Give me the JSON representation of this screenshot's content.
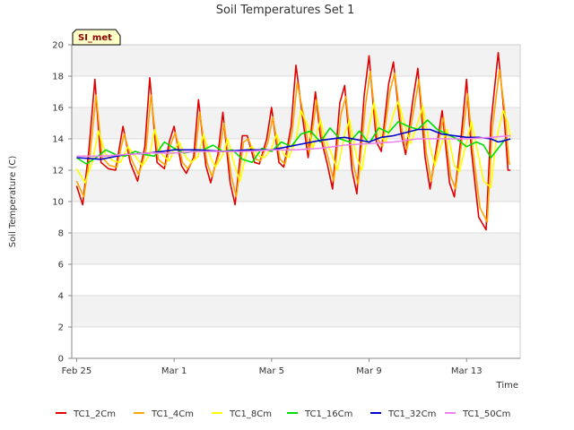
{
  "chart_data": {
    "type": "line",
    "title": "Soil Temperatures Set 1",
    "xlabel": "Time",
    "ylabel": "Soil Temperature (C)",
    "site_label": "SI_met",
    "xlim": [
      -0.2,
      18.2
    ],
    "ylim": [
      0,
      20
    ],
    "x_unit": "days since Feb 25",
    "x_ticks": [
      {
        "x": 0,
        "label": "Feb 25"
      },
      {
        "x": 4,
        "label": "Mar 1"
      },
      {
        "x": 8,
        "label": "Mar 5"
      },
      {
        "x": 12,
        "label": "Mar 9"
      },
      {
        "x": 16,
        "label": "Mar 13"
      }
    ],
    "y_ticks": [
      0,
      2,
      4,
      6,
      8,
      10,
      12,
      14,
      16,
      18,
      20
    ],
    "grid": true,
    "legend_position": "bottom",
    "series": [
      {
        "name": "TC1_2Cm",
        "color": "#e00000",
        "x": [
          0.0,
          0.25,
          0.5,
          0.75,
          1.0,
          1.3,
          1.6,
          1.9,
          2.2,
          2.5,
          2.8,
          3.0,
          3.3,
          3.6,
          3.8,
          4.0,
          4.3,
          4.5,
          4.8,
          5.0,
          5.3,
          5.5,
          5.8,
          6.0,
          6.3,
          6.5,
          6.8,
          7.0,
          7.3,
          7.5,
          7.8,
          8.0,
          8.3,
          8.5,
          8.8,
          9.0,
          9.3,
          9.5,
          9.8,
          10.0,
          10.3,
          10.5,
          10.8,
          11.0,
          11.3,
          11.5,
          11.8,
          12.0,
          12.3,
          12.5,
          12.8,
          13.0,
          13.3,
          13.5,
          13.8,
          14.0,
          14.3,
          14.5,
          14.8,
          15.0,
          15.3,
          15.5,
          15.8,
          16.0,
          16.2,
          16.5,
          16.8,
          17.0,
          17.3,
          17.5,
          17.7,
          17.8
        ],
        "y": [
          11.0,
          9.8,
          13.2,
          17.8,
          12.5,
          12.1,
          12.0,
          14.8,
          12.5,
          11.3,
          13.5,
          17.9,
          12.5,
          12.1,
          13.8,
          14.8,
          12.3,
          11.8,
          12.8,
          16.5,
          12.3,
          11.2,
          13.0,
          15.7,
          11.2,
          9.8,
          14.2,
          14.2,
          12.5,
          12.4,
          14.0,
          16.0,
          12.5,
          12.2,
          14.8,
          18.7,
          15.0,
          12.8,
          17.0,
          14.2,
          12.3,
          10.8,
          16.3,
          17.4,
          12.0,
          10.5,
          16.8,
          19.3,
          13.8,
          13.2,
          17.5,
          18.9,
          14.5,
          13.0,
          16.5,
          18.5,
          12.8,
          10.8,
          13.8,
          15.8,
          11.2,
          10.3,
          14.5,
          17.8,
          13.2,
          9.0,
          8.2,
          15.0,
          19.5,
          16.3,
          12.0,
          12.0
        ]
      },
      {
        "name": "TC1_4Cm",
        "color": "#ffa500",
        "x": [
          0.0,
          0.3,
          0.55,
          0.8,
          1.05,
          1.35,
          1.65,
          1.95,
          2.25,
          2.55,
          2.85,
          3.05,
          3.35,
          3.65,
          3.85,
          4.05,
          4.35,
          4.55,
          4.85,
          5.05,
          5.35,
          5.55,
          5.85,
          6.05,
          6.35,
          6.55,
          6.85,
          7.05,
          7.35,
          7.55,
          7.85,
          8.05,
          8.35,
          8.55,
          8.85,
          9.05,
          9.35,
          9.55,
          9.85,
          10.05,
          10.35,
          10.55,
          10.85,
          11.05,
          11.35,
          11.55,
          11.85,
          12.05,
          12.35,
          12.55,
          12.85,
          13.05,
          13.35,
          13.55,
          13.85,
          14.05,
          14.35,
          14.55,
          14.85,
          15.05,
          15.35,
          15.55,
          15.85,
          16.05,
          16.25,
          16.55,
          16.85,
          17.05,
          17.35,
          17.55,
          17.75,
          17.8
        ],
        "y": [
          11.3,
          10.3,
          13.0,
          16.8,
          12.8,
          12.3,
          12.2,
          14.3,
          12.7,
          11.7,
          13.3,
          16.8,
          12.7,
          12.3,
          13.6,
          14.4,
          12.5,
          12.1,
          12.8,
          15.7,
          12.5,
          11.6,
          13.0,
          15.0,
          11.6,
          10.3,
          13.8,
          14.0,
          12.7,
          12.6,
          13.8,
          15.4,
          12.7,
          12.4,
          14.5,
          17.6,
          15.2,
          13.1,
          16.5,
          14.3,
          12.6,
          11.3,
          15.6,
          16.7,
          12.4,
          11.1,
          16.1,
          18.3,
          14.0,
          13.5,
          17.0,
          18.2,
          14.6,
          13.3,
          16.0,
          17.8,
          13.1,
          11.3,
          13.8,
          15.4,
          11.6,
          10.8,
          14.3,
          16.9,
          13.4,
          9.6,
          8.7,
          14.6,
          18.4,
          16.0,
          12.4,
          12.4
        ]
      },
      {
        "name": "TC1_8Cm",
        "color": "#ffff00",
        "x": [
          0.0,
          0.35,
          0.65,
          0.9,
          1.2,
          1.5,
          1.8,
          2.1,
          2.4,
          2.7,
          3.0,
          3.2,
          3.5,
          3.8,
          4.0,
          4.2,
          4.5,
          4.7,
          5.0,
          5.2,
          5.5,
          5.7,
          6.0,
          6.2,
          6.5,
          6.7,
          7.0,
          7.2,
          7.5,
          7.7,
          8.0,
          8.2,
          8.5,
          8.7,
          9.0,
          9.2,
          9.5,
          9.7,
          10.0,
          10.2,
          10.5,
          10.7,
          11.0,
          11.2,
          11.5,
          11.7,
          12.0,
          12.2,
          12.5,
          12.7,
          13.0,
          13.2,
          13.5,
          13.7,
          14.0,
          14.2,
          14.5,
          14.7,
          15.0,
          15.2,
          15.5,
          15.7,
          16.0,
          16.2,
          16.4,
          16.7,
          17.0,
          17.2,
          17.5,
          17.7,
          17.8
        ],
        "y": [
          12.1,
          11.2,
          12.6,
          14.5,
          13.0,
          12.6,
          12.5,
          13.5,
          12.9,
          12.3,
          13.0,
          14.6,
          13.0,
          12.6,
          13.3,
          13.8,
          12.8,
          12.5,
          12.9,
          14.3,
          12.8,
          12.2,
          13.0,
          14.0,
          12.2,
          11.3,
          13.3,
          13.5,
          12.9,
          12.8,
          13.4,
          14.3,
          13.0,
          12.8,
          13.9,
          15.8,
          14.8,
          13.4,
          15.2,
          14.0,
          12.9,
          12.0,
          14.3,
          15.2,
          12.8,
          12.0,
          14.8,
          16.3,
          14.1,
          13.8,
          15.6,
          16.4,
          14.7,
          13.7,
          15.0,
          16.1,
          13.5,
          12.3,
          13.8,
          14.6,
          12.3,
          11.9,
          13.8,
          15.1,
          13.6,
          11.3,
          10.9,
          13.8,
          15.8,
          15.0,
          14.1
        ]
      },
      {
        "name": "TC1_16Cm",
        "color": "#00dd00",
        "x": [
          0.0,
          0.4,
          0.8,
          1.2,
          1.6,
          2.0,
          2.4,
          2.8,
          3.2,
          3.6,
          4.0,
          4.4,
          4.8,
          5.2,
          5.6,
          6.0,
          6.4,
          6.8,
          7.2,
          7.6,
          8.0,
          8.4,
          8.8,
          9.2,
          9.6,
          10.0,
          10.4,
          10.8,
          11.2,
          11.6,
          12.0,
          12.4,
          12.8,
          13.2,
          13.6,
          14.0,
          14.4,
          14.8,
          15.2,
          15.6,
          16.0,
          16.4,
          16.7,
          17.0,
          17.3,
          17.6
        ],
        "y": [
          12.8,
          12.4,
          12.8,
          13.3,
          13.0,
          12.9,
          13.2,
          13.0,
          12.9,
          13.8,
          13.4,
          13.1,
          13.2,
          13.3,
          13.6,
          13.2,
          13.3,
          12.7,
          12.5,
          13.4,
          13.2,
          13.8,
          13.5,
          14.3,
          14.5,
          13.8,
          14.7,
          14.0,
          13.8,
          14.5,
          13.7,
          14.7,
          14.4,
          15.1,
          14.8,
          14.6,
          15.2,
          14.6,
          14.3,
          14.0,
          13.5,
          13.8,
          13.6,
          12.8,
          13.4,
          14.0
        ]
      },
      {
        "name": "TC1_32Cm",
        "color": "#0000cc",
        "x": [
          0.0,
          1.0,
          2.0,
          3.0,
          4.0,
          5.0,
          6.0,
          7.0,
          8.0,
          9.0,
          10.0,
          11.0,
          12.0,
          12.5,
          13.0,
          13.5,
          14.0,
          14.5,
          15.0,
          15.5,
          16.0,
          16.5,
          17.0,
          17.3,
          17.6,
          17.8
        ],
        "y": [
          12.8,
          12.7,
          13.0,
          13.1,
          13.3,
          13.3,
          13.2,
          13.3,
          13.3,
          13.6,
          13.9,
          14.1,
          13.8,
          14.1,
          14.2,
          14.4,
          14.6,
          14.6,
          14.3,
          14.2,
          14.1,
          14.1,
          14.0,
          13.8,
          13.9,
          14.0
        ]
      },
      {
        "name": "TC1_50Cm",
        "color": "#ee82ee",
        "x": [
          0.0,
          1.0,
          2.0,
          3.0,
          4.0,
          5.0,
          6.0,
          7.0,
          8.0,
          9.0,
          10.0,
          11.0,
          12.0,
          13.0,
          14.0,
          15.0,
          16.0,
          17.0,
          17.8
        ],
        "y": [
          12.9,
          12.9,
          13.0,
          13.1,
          13.1,
          13.2,
          13.2,
          13.2,
          13.3,
          13.3,
          13.4,
          13.6,
          13.7,
          13.8,
          14.0,
          14.0,
          14.0,
          14.1,
          14.2
        ]
      }
    ]
  }
}
